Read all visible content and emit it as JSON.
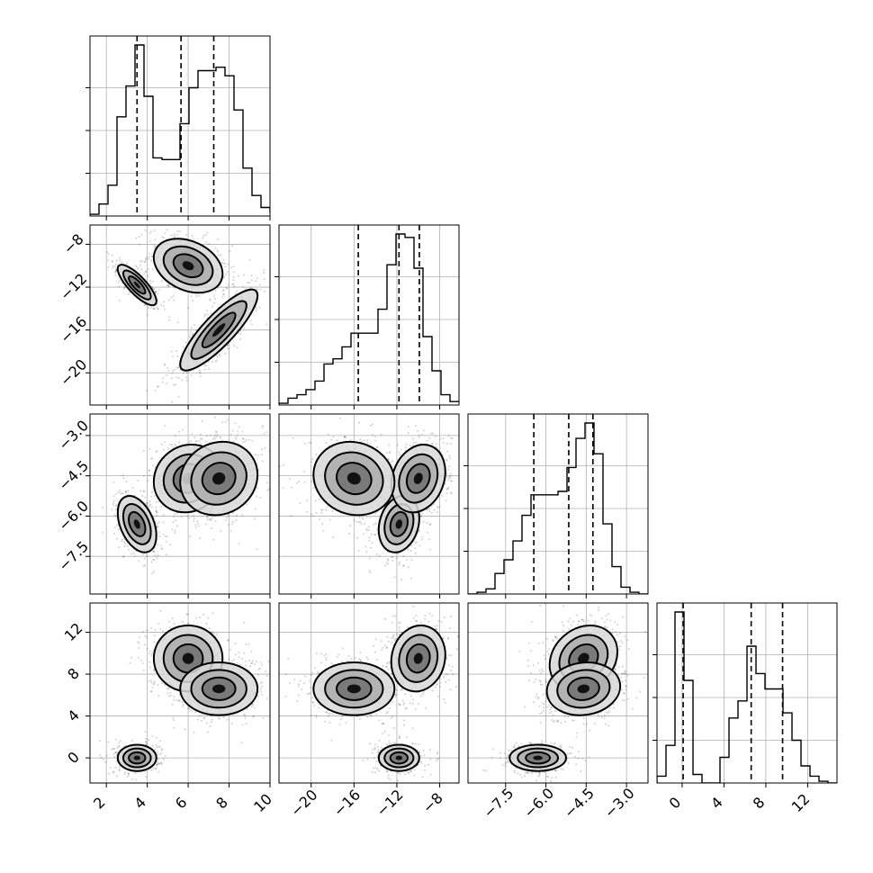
{
  "chart_data": {
    "type": "corner",
    "parameters": [
      {
        "key": "p0",
        "range": [
          1.2,
          10
        ],
        "ticks": [
          2,
          4,
          6,
          8,
          10
        ],
        "tick_labels": [
          "2",
          "4",
          "6",
          "8",
          "10"
        ],
        "quantiles": [
          3.5,
          5.65,
          7.25
        ]
      },
      {
        "key": "p1",
        "range": [
          -23,
          -6.2
        ],
        "ticks": [
          -20,
          -16,
          -12,
          -8
        ],
        "tick_labels": [
          "−20",
          "−16",
          "−12",
          "−8"
        ],
        "quantiles": [
          -15.6,
          -11.8,
          -9.9
        ]
      },
      {
        "key": "p2",
        "range": [
          -8.9,
          -2.2
        ],
        "ticks": [
          -7.5,
          -6.0,
          -4.5,
          -3.0
        ],
        "tick_labels": [
          "−7.5",
          "−6.0",
          "−4.5",
          "−3.0"
        ],
        "quantiles": [
          -6.45,
          -5.15,
          -4.25
        ]
      },
      {
        "key": "p3",
        "range": [
          -2.4,
          14.8
        ],
        "ticks": [
          0,
          4,
          8,
          12
        ],
        "tick_labels": [
          "0",
          "4",
          "8",
          "12"
        ],
        "quantiles": [
          0.1,
          6.6,
          9.6
        ]
      }
    ],
    "histograms": [
      {
        "bin_start": 1.2,
        "bin_width": 0.44,
        "counts": [
          1,
          7,
          18,
          58,
          76,
          100,
          70,
          34,
          33,
          33,
          54,
          75,
          85,
          85,
          87,
          82,
          62,
          28,
          12,
          5,
          2,
          0
        ]
      },
      {
        "bin_start": -23,
        "bin_width": 0.84,
        "counts": [
          1,
          4,
          6,
          9,
          14,
          24,
          27,
          34,
          42,
          42,
          42,
          56,
          82,
          100,
          98,
          80,
          40,
          20,
          6,
          2
        ]
      },
      {
        "bin_start": -8.9,
        "bin_width": 0.335,
        "counts": [
          0,
          1,
          3,
          12,
          20,
          31,
          46,
          58,
          58,
          58,
          60,
          74,
          91,
          100,
          82,
          41,
          16,
          4,
          1,
          0
        ]
      },
      {
        "bin_start": -2.4,
        "bin_width": 0.86,
        "counts": [
          4,
          22,
          100,
          60,
          5,
          0,
          0,
          15,
          38,
          48,
          80,
          64,
          55,
          55,
          41,
          25,
          10,
          4,
          1,
          0
        ]
      }
    ],
    "modes": [
      {
        "weight": 0.28,
        "mean": [
          3.5,
          -11.8,
          -6.3,
          0.0
        ],
        "sd": [
          0.45,
          0.9,
          0.5,
          0.6
        ]
      },
      {
        "weight": 0.36,
        "mean": [
          6.0,
          -10.0,
          -4.6,
          9.5
        ],
        "sd": [
          0.8,
          1.2,
          0.6,
          1.5
        ]
      },
      {
        "weight": 0.36,
        "mean": [
          7.5,
          -16.0,
          -4.6,
          6.6
        ],
        "sd": [
          0.9,
          1.8,
          0.65,
          1.2
        ]
      }
    ],
    "grid": true
  }
}
